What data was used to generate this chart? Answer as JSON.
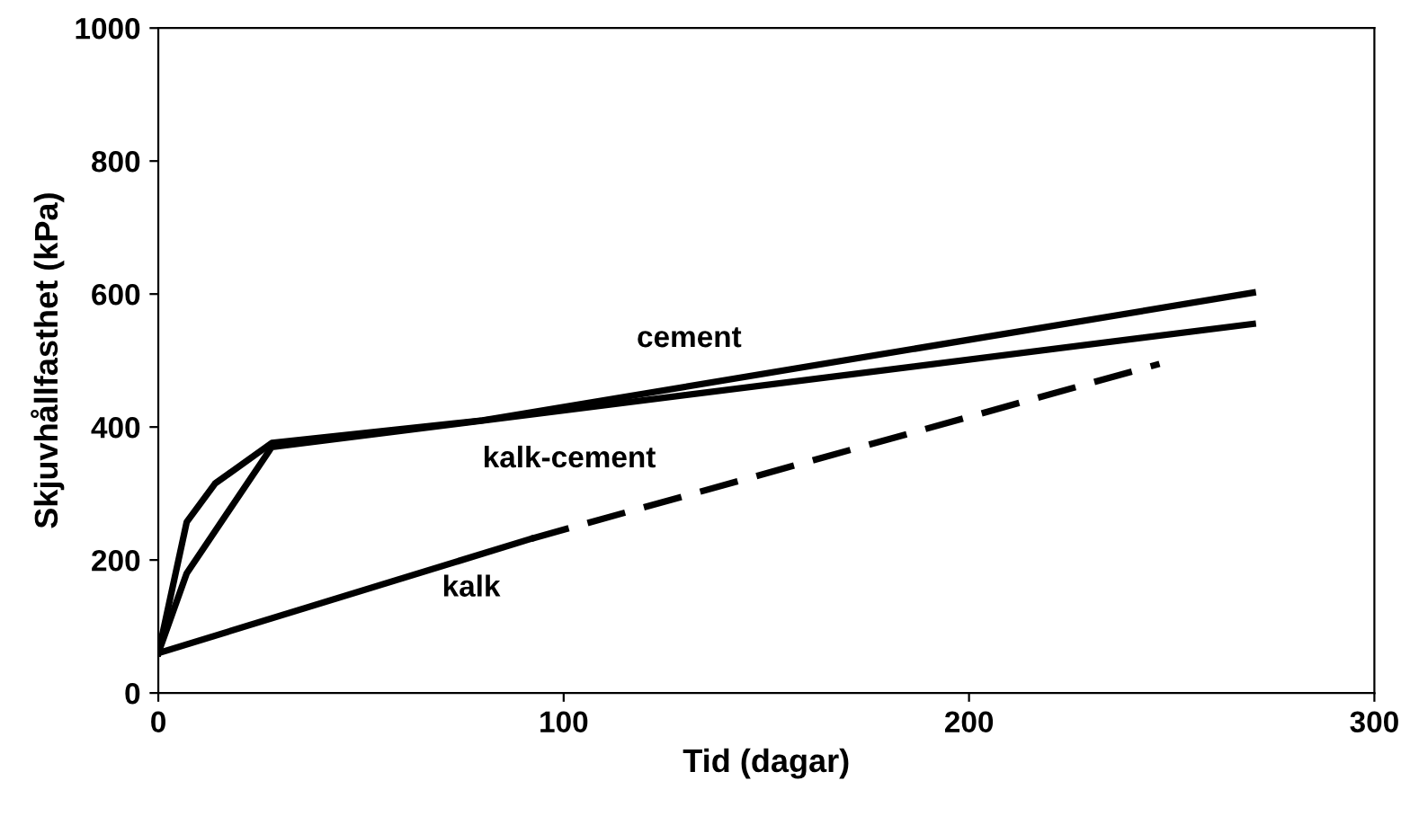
{
  "chart_data": {
    "type": "line",
    "xlabel": "Tid (dagar)",
    "ylabel": "Skjuvhållfasthet (kPa)",
    "xlim": [
      0,
      300
    ],
    "ylim": [
      0,
      1000
    ],
    "xticks": [
      0,
      100,
      200,
      300
    ],
    "yticks": [
      0,
      200,
      400,
      600,
      800,
      1000
    ],
    "grid": false,
    "legend": false,
    "series": [
      {
        "name": "cement",
        "color": "#000000",
        "line_style": "solid",
        "x": [
          0,
          7,
          14,
          28,
          80,
          270
        ],
        "values": [
          60,
          257,
          315,
          376,
          410,
          602
        ]
      },
      {
        "name": "kalk-cement",
        "color": "#000000",
        "line_style": "solid",
        "x": [
          0,
          7,
          28,
          270
        ],
        "values": [
          60,
          180,
          370,
          555
        ]
      },
      {
        "name": "kalk",
        "color": "#000000",
        "line_style": "solid",
        "x": [
          0,
          92
        ],
        "values": [
          60,
          232
        ]
      },
      {
        "color": "#000000",
        "line_style": "dashed",
        "x": [
          92,
          247
        ],
        "values": [
          232,
          495
        ]
      }
    ]
  }
}
